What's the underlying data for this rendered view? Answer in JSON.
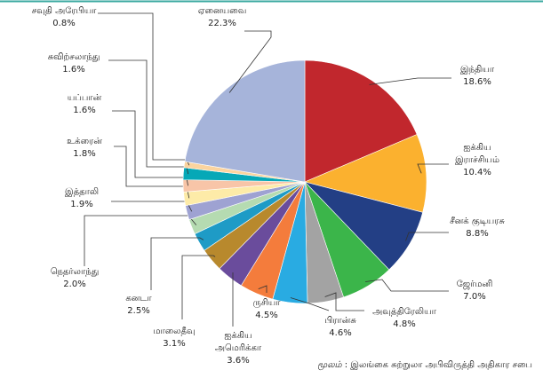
{
  "chart_data": {
    "type": "pie",
    "categories": [
      "இந்தியா",
      "ஐக்கிய\nஇராச்சியம்",
      "சீனக் குடியரசு",
      "ஜேர்மனி",
      "அவுத்திரேலியா",
      "பிரான்சு",
      "ருசியா",
      "ஐக்கிய\nஅமெரிக்கா",
      "மாலைதீவு",
      "கனடா",
      "நெதர்லாந்து",
      "இத்தாலி",
      "உக்ரைன்",
      "யப்பான்",
      "சுவிற்சலாந்து",
      "சவுதி அரேபியா",
      "ஏனையவை"
    ],
    "values": [
      18.6,
      10.4,
      8.8,
      7.0,
      4.8,
      4.6,
      4.5,
      3.6,
      3.1,
      2.5,
      2.0,
      1.9,
      1.8,
      1.6,
      1.6,
      0.8,
      22.3
    ],
    "value_labels": [
      "18.6%",
      "10.4%",
      "8.8%",
      "7.0%",
      "4.8%",
      "4.6%",
      "4.5%",
      "3.6%",
      "3.1%",
      "2.5%",
      "2.0%",
      "1.9%",
      "1.8%",
      "1.6%",
      "1.6%",
      "0.8%",
      "22.3%"
    ],
    "colors": [
      "#c1272d",
      "#fbb12f",
      "#233f85",
      "#3bb54a",
      "#a3a3a3",
      "#29abe2",
      "#f47c3c",
      "#6a4c9c",
      "#b8892d",
      "#1e9bc6",
      "#b5dbb1",
      "#9ea2d2",
      "#fdeba8",
      "#f8c5a8",
      "#06a8b7",
      "#fbd49f",
      "#a6b4da"
    ],
    "source_label": "மூலம்",
    "source": ": இலங்கை சுற்றுலா அபிவிருத்தி அதிகார சபை"
  }
}
